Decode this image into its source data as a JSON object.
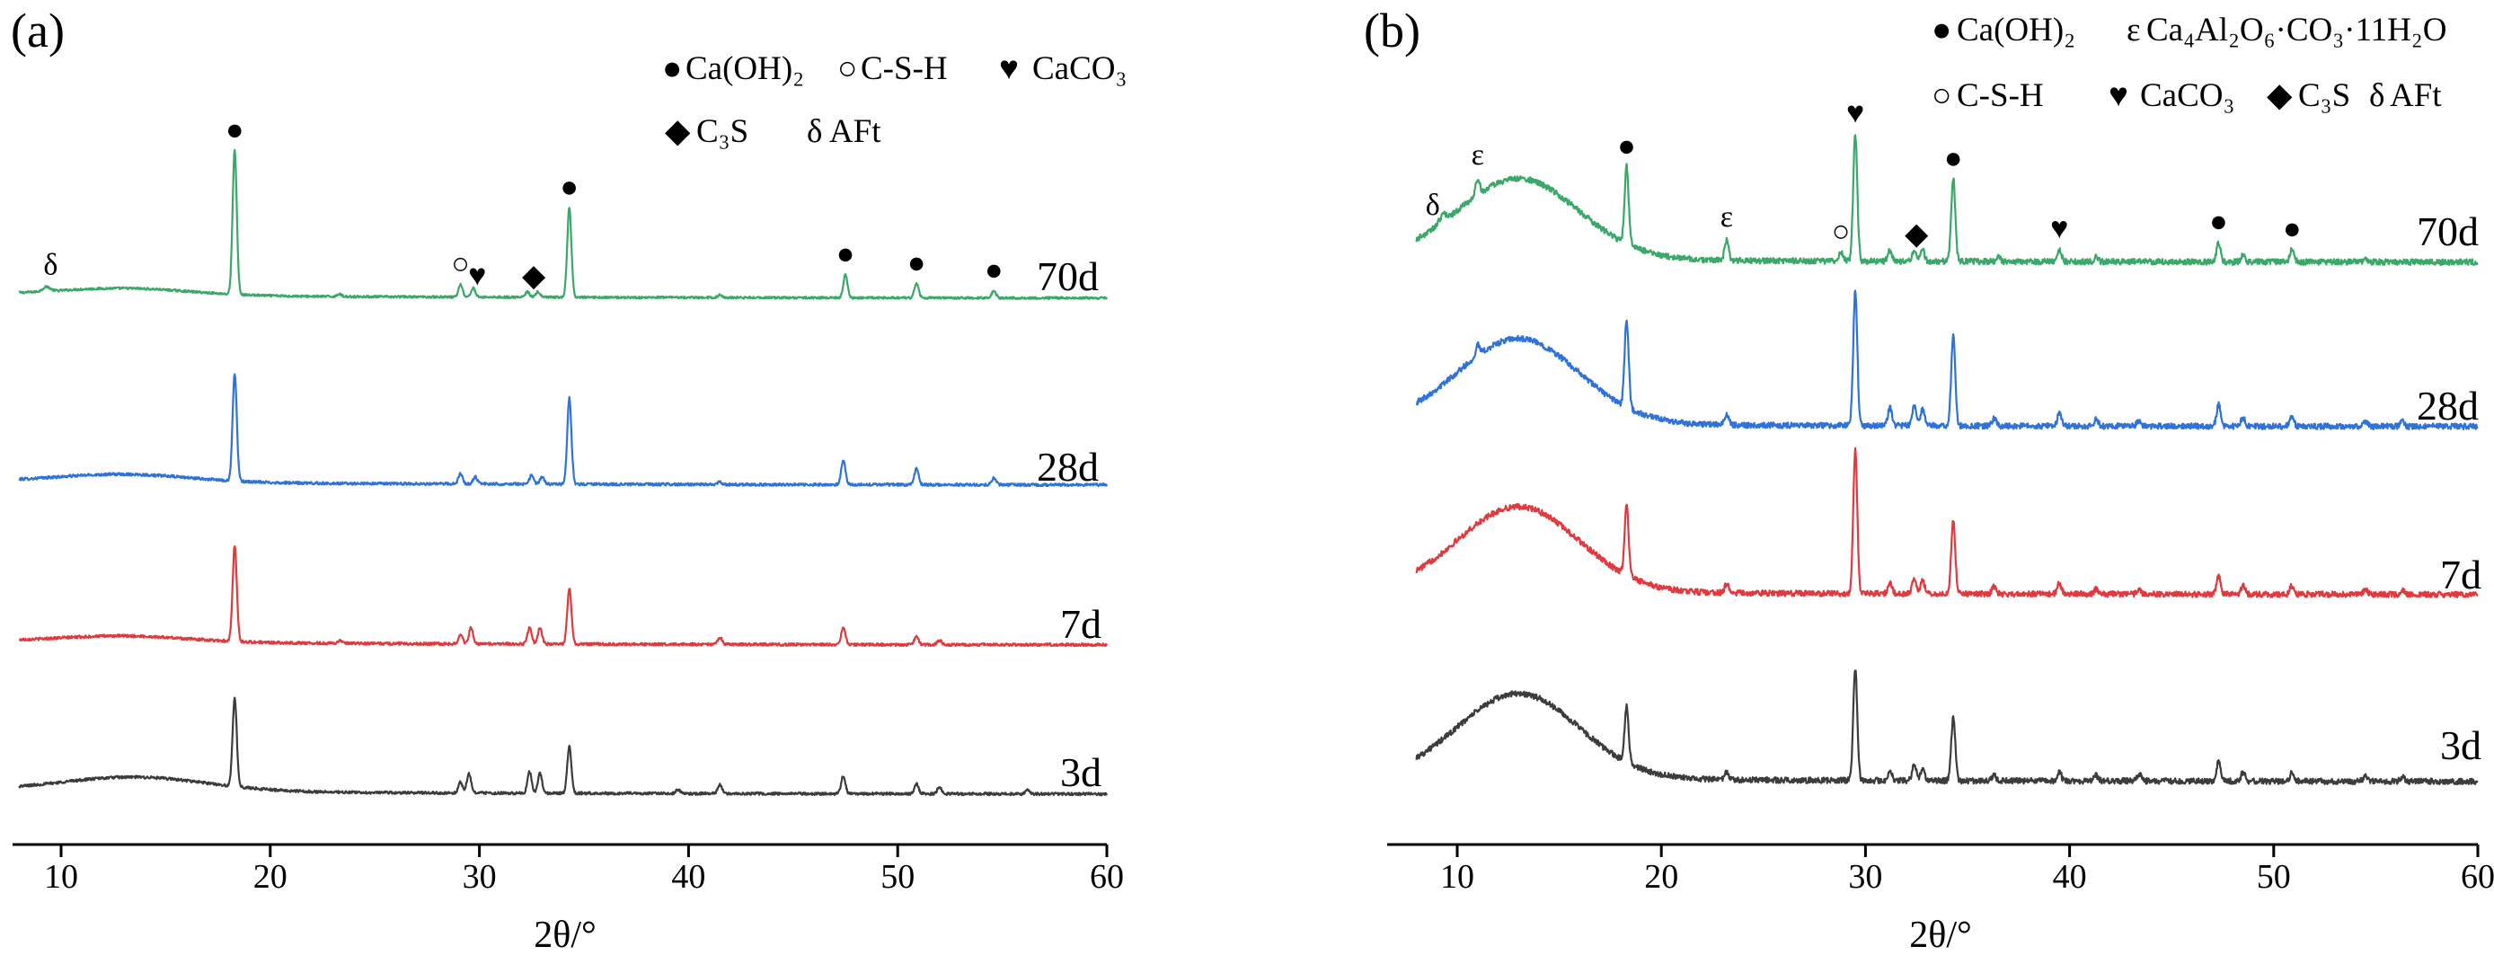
{
  "chart_data": [
    {
      "type": "line",
      "panel_label": "(a)",
      "xlabel": "2θ/°",
      "ylabel": "",
      "xlim": [
        8,
        60
      ],
      "x_ticks": [
        10,
        20,
        30,
        40,
        50,
        60
      ],
      "y_axis_visible": false,
      "grid": false,
      "legend": {
        "placement": "top-right",
        "entries": [
          {
            "marker": "●",
            "label": "Ca(OH)₂"
          },
          {
            "marker": "○",
            "label": "C-S-H"
          },
          {
            "marker": "♥",
            "label": "CaCO₃"
          },
          {
            "marker": "◆",
            "label": "C₃S"
          },
          {
            "marker": "δ",
            "label": "AFt"
          }
        ]
      },
      "series": [
        {
          "name": "70d",
          "color": "#3aa868",
          "noise": 1.2,
          "baseline": 86,
          "hump": {
            "center": 13,
            "width": 4.5,
            "height": 8
          },
          "delta_bump": 5,
          "peaks": [
            [
              18.3,
              160
            ],
            [
              29.1,
              14
            ],
            [
              29.7,
              10
            ],
            [
              32.3,
              6
            ],
            [
              32.8,
              6
            ],
            [
              34.3,
              100
            ],
            [
              47.5,
              26
            ],
            [
              50.9,
              16
            ],
            [
              54.6,
              8
            ],
            [
              23.3,
              3
            ],
            [
              41.5,
              3
            ]
          ]
        },
        {
          "name": "28d",
          "color": "#2f72d8",
          "noise": 1.5,
          "baseline": 86,
          "hump": {
            "center": 13,
            "width": 4.5,
            "height": 9
          },
          "peaks": [
            [
              18.3,
              120
            ],
            [
              29.1,
              12
            ],
            [
              29.8,
              8
            ],
            [
              32.5,
              10
            ],
            [
              33.0,
              8
            ],
            [
              34.3,
              96
            ],
            [
              47.4,
              28
            ],
            [
              50.9,
              18
            ],
            [
              54.6,
              8
            ],
            [
              41.5,
              3
            ]
          ]
        },
        {
          "name": "7d",
          "color": "#e0393e",
          "noise": 1.5,
          "baseline": 86,
          "hump": {
            "center": 13,
            "width": 4.5,
            "height": 7
          },
          "peaks": [
            [
              18.3,
              106
            ],
            [
              29.1,
              10
            ],
            [
              29.6,
              18
            ],
            [
              32.4,
              18
            ],
            [
              32.9,
              18
            ],
            [
              34.3,
              62
            ],
            [
              47.4,
              20
            ],
            [
              50.9,
              9
            ],
            [
              52.0,
              5
            ],
            [
              41.5,
              8
            ],
            [
              23.3,
              3
            ]
          ]
        },
        {
          "name": "3d",
          "color": "#3c3c3c",
          "noise": 1.5,
          "baseline": 86,
          "hump": {
            "center": 13.5,
            "width": 5,
            "height": 16
          },
          "peaks": [
            [
              18.3,
              98
            ],
            [
              29.1,
              12
            ],
            [
              29.5,
              22
            ],
            [
              32.4,
              24
            ],
            [
              32.9,
              22
            ],
            [
              34.3,
              52
            ],
            [
              47.4,
              20
            ],
            [
              50.9,
              11
            ],
            [
              52.0,
              8
            ],
            [
              41.5,
              10
            ],
            [
              39.5,
              4
            ],
            [
              56.2,
              4
            ]
          ]
        }
      ],
      "annotations": [
        {
          "series": "70d",
          "marker": "δ",
          "x": 9.5
        },
        {
          "series": "70d",
          "marker": "●",
          "x": 18.3
        },
        {
          "series": "70d",
          "marker": "○",
          "x": 29.1
        },
        {
          "series": "70d",
          "marker": "♥",
          "x": 29.9
        },
        {
          "series": "70d",
          "marker": "◆",
          "x": 32.6
        },
        {
          "series": "70d",
          "marker": "●",
          "x": 34.3
        },
        {
          "series": "70d",
          "marker": "●",
          "x": 47.5
        },
        {
          "series": "70d",
          "marker": "●",
          "x": 50.9
        },
        {
          "series": "70d",
          "marker": "●",
          "x": 54.6
        }
      ]
    },
    {
      "type": "line",
      "panel_label": "(b)",
      "xlabel": "2θ/°",
      "ylabel": "",
      "xlim": [
        8,
        60
      ],
      "x_ticks": [
        10,
        20,
        30,
        40,
        50,
        60
      ],
      "y_axis_visible": false,
      "grid": false,
      "legend": {
        "placement": "top-right",
        "entries": [
          {
            "marker": "●",
            "label": "Ca(OH)₂"
          },
          {
            "marker": "ε",
            "label": "Ca₄Al₂O₆·CO₃·11H₂O"
          },
          {
            "marker": "○",
            "label": "C-S-H"
          },
          {
            "marker": "♥",
            "label": "CaCO₃"
          },
          {
            "marker": "◆",
            "label": "C₃S"
          },
          {
            "marker": "δ",
            "label": "AFt"
          }
        ]
      },
      "series": [
        {
          "name": "70d",
          "color": "#3aa868",
          "noise": 3.2,
          "baseline": 70,
          "hump": {
            "center": 13,
            "width": 4.2,
            "height": 90
          },
          "delta_bump": 8,
          "peaks": [
            [
              11.0,
              18
            ],
            [
              18.3,
              86
            ],
            [
              23.2,
              22
            ],
            [
              28.8,
              10
            ],
            [
              29.5,
              142
            ],
            [
              31.2,
              12
            ],
            [
              32.4,
              12
            ],
            [
              32.8,
              12
            ],
            [
              34.3,
              92
            ],
            [
              36.5,
              6
            ],
            [
              39.5,
              14
            ],
            [
              41.3,
              6
            ],
            [
              47.3,
              22
            ],
            [
              48.5,
              8
            ],
            [
              50.9,
              14
            ],
            [
              54.5,
              5
            ]
          ]
        },
        {
          "name": "28d",
          "color": "#2f72d8",
          "noise": 3.2,
          "baseline": 70,
          "hump": {
            "center": 13,
            "width": 4.2,
            "height": 95
          },
          "peaks": [
            [
              11.0,
              12
            ],
            [
              18.3,
              98
            ],
            [
              23.2,
              12
            ],
            [
              29.5,
              150
            ],
            [
              31.2,
              20
            ],
            [
              32.4,
              22
            ],
            [
              32.8,
              18
            ],
            [
              34.3,
              100
            ],
            [
              36.3,
              8
            ],
            [
              39.5,
              14
            ],
            [
              41.3,
              8
            ],
            [
              43.4,
              6
            ],
            [
              47.3,
              24
            ],
            [
              48.5,
              10
            ],
            [
              50.9,
              10
            ],
            [
              54.5,
              6
            ],
            [
              56.3,
              5
            ]
          ]
        },
        {
          "name": "7d",
          "color": "#e0393e",
          "noise": 3.2,
          "baseline": 70,
          "hump": {
            "center": 13,
            "width": 4.2,
            "height": 95
          },
          "peaks": [
            [
              18.3,
              78
            ],
            [
              23.2,
              10
            ],
            [
              29.5,
              160
            ],
            [
              31.2,
              12
            ],
            [
              32.4,
              18
            ],
            [
              32.8,
              16
            ],
            [
              34.3,
              82
            ],
            [
              36.3,
              8
            ],
            [
              39.5,
              12
            ],
            [
              41.3,
              6
            ],
            [
              43.4,
              6
            ],
            [
              47.3,
              20
            ],
            [
              48.5,
              10
            ],
            [
              50.9,
              10
            ],
            [
              54.5,
              5
            ],
            [
              56.3,
              5
            ]
          ]
        },
        {
          "name": "3d",
          "color": "#3c3c3c",
          "noise": 3.2,
          "baseline": 70,
          "hump": {
            "center": 13,
            "width": 4.2,
            "height": 95
          },
          "peaks": [
            [
              18.3,
              62
            ],
            [
              23.2,
              8
            ],
            [
              29.5,
              125
            ],
            [
              31.2,
              10
            ],
            [
              32.4,
              18
            ],
            [
              32.8,
              14
            ],
            [
              34.3,
              70
            ],
            [
              36.3,
              6
            ],
            [
              39.5,
              10
            ],
            [
              41.3,
              6
            ],
            [
              43.4,
              8
            ],
            [
              47.3,
              22
            ],
            [
              48.5,
              10
            ],
            [
              50.9,
              10
            ],
            [
              54.5,
              6
            ],
            [
              56.3,
              5
            ]
          ]
        }
      ],
      "annotations": [
        {
          "series": "70d",
          "marker": "δ",
          "x": 8.8
        },
        {
          "series": "70d",
          "marker": "ε",
          "x": 11.0
        },
        {
          "series": "70d",
          "marker": "●",
          "x": 18.3
        },
        {
          "series": "70d",
          "marker": "ε",
          "x": 23.2
        },
        {
          "series": "70d",
          "marker": "○",
          "x": 28.8
        },
        {
          "series": "70d",
          "marker": "♥",
          "x": 29.5
        },
        {
          "series": "70d",
          "marker": "◆",
          "x": 32.5
        },
        {
          "series": "70d",
          "marker": "●",
          "x": 34.3
        },
        {
          "series": "70d",
          "marker": "♥",
          "x": 39.5
        },
        {
          "series": "70d",
          "marker": "●",
          "x": 47.3
        },
        {
          "series": "70d",
          "marker": "●",
          "x": 50.9
        }
      ]
    }
  ]
}
